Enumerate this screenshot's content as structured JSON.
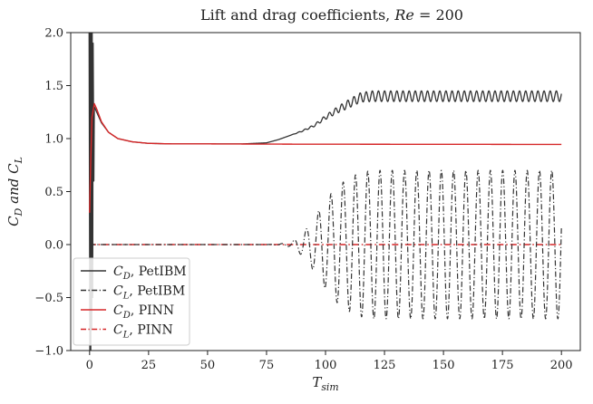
{
  "chart_data": {
    "type": "line",
    "title": "Lift and drag coefficients, Re = 200",
    "xlabel": "T_sim",
    "ylabel": "C_D and C_L",
    "xlim": [
      -8,
      208
    ],
    "ylim": [
      -1.0,
      2.0
    ],
    "xticks": [
      0,
      25,
      50,
      75,
      100,
      125,
      150,
      175,
      200
    ],
    "yticks": [
      -1.0,
      -0.5,
      0.0,
      0.5,
      1.0,
      1.5,
      2.0
    ],
    "xtick_labels": [
      "0",
      "25",
      "50",
      "75",
      "100",
      "125",
      "150",
      "175",
      "200"
    ],
    "ytick_labels": [
      "−1.0",
      "−0.5",
      "0.0",
      "0.5",
      "1.0",
      "1.5",
      "2.0"
    ],
    "grid": false,
    "legend_position": "bottom-left",
    "series": [
      {
        "name": "C_D, PetIBM",
        "color": "#333333",
        "style": "solid",
        "description_points": {
          "x": [
            0,
            0.5,
            1,
            2,
            3,
            5,
            8,
            12,
            18,
            25,
            35,
            50,
            65,
            75,
            80,
            85,
            90,
            95,
            100,
            105,
            110,
            115,
            120,
            200
          ],
          "y": [
            2.0,
            0.3,
            1.1,
            1.3,
            1.25,
            1.15,
            1.06,
            1.0,
            0.97,
            0.955,
            0.95,
            0.95,
            0.95,
            0.96,
            0.99,
            1.03,
            1.07,
            1.12,
            1.2,
            1.27,
            1.33,
            1.39,
            1.4,
            1.4
          ]
        },
        "oscillation_amplitude": [
          0,
          0,
          0,
          0,
          0,
          0,
          0,
          0,
          0,
          0,
          0,
          0,
          0,
          0,
          0,
          0,
          0.005,
          0.01,
          0.02,
          0.03,
          0.04,
          0.045,
          0.05,
          0.05
        ]
      },
      {
        "name": "C_L, PetIBM",
        "color": "#333333",
        "style": "dashdot",
        "description_points": {
          "x": [
            0,
            75,
            80,
            85,
            88,
            92,
            96,
            100,
            105,
            110,
            115,
            120,
            200
          ],
          "y_amplitude": [
            0,
            0,
            0.005,
            0.02,
            0.06,
            0.15,
            0.28,
            0.42,
            0.55,
            0.63,
            0.68,
            0.7,
            0.7
          ]
        }
      },
      {
        "name": "C_D, PINN",
        "color": "#d62728",
        "style": "solid",
        "description_points": {
          "x": [
            0,
            0.5,
            1,
            2,
            3,
            5,
            8,
            12,
            18,
            25,
            35,
            50,
            75,
            100,
            150,
            200
          ],
          "y": [
            0.3,
            0.8,
            1.2,
            1.33,
            1.28,
            1.16,
            1.06,
            1.0,
            0.97,
            0.955,
            0.95,
            0.95,
            0.948,
            0.947,
            0.946,
            0.945
          ]
        }
      },
      {
        "name": "C_L, PINN",
        "color": "#d62728",
        "style": "dashdot",
        "description_points": {
          "x": [
            0,
            200
          ],
          "y": [
            0.0,
            0.0
          ]
        }
      }
    ]
  }
}
